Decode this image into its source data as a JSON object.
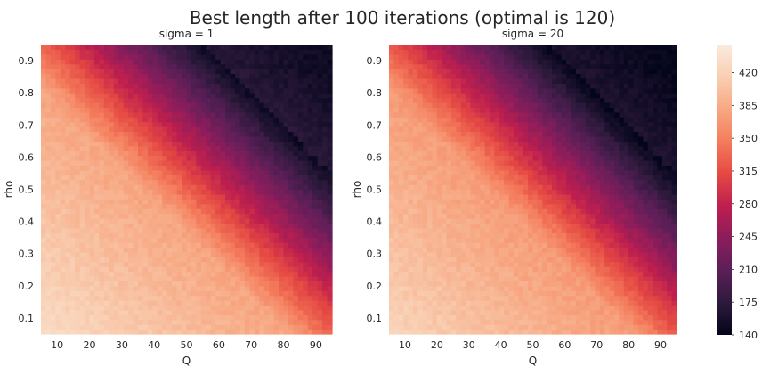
{
  "chart_data": {
    "suptitle": "Best length after 100 iterations (optimal is 120)",
    "colorbar": {
      "min": 140,
      "max": 450,
      "ticks": [
        140,
        175,
        210,
        245,
        280,
        315,
        350,
        385,
        420
      ],
      "colormap": "rocket",
      "colors": [
        "#03051a",
        "#2d1a3c",
        "#5b1f57",
        "#8b1d5c",
        "#be1f4e",
        "#e54943",
        "#f47c5c",
        "#f7a883",
        "#f9cfb3",
        "#faebdd"
      ]
    },
    "panels": [
      {
        "type": "heatmap",
        "title": "sigma = 1",
        "xlabel": "Q",
        "ylabel": "rho",
        "xticks": [
          10,
          20,
          30,
          40,
          50,
          60,
          70,
          80,
          90
        ],
        "yticks": [
          0.1,
          0.2,
          0.3,
          0.4,
          0.5,
          0.6,
          0.7,
          0.8,
          0.9
        ],
        "xlim": [
          5,
          95
        ],
        "ylim": [
          0.05,
          0.95
        ],
        "grid": false,
        "sigma": 1
      },
      {
        "type": "heatmap",
        "title": "sigma = 20",
        "xlabel": "Q",
        "ylabel": "rho",
        "xticks": [
          10,
          20,
          30,
          40,
          50,
          60,
          70,
          80,
          90
        ],
        "yticks": [
          0.1,
          0.2,
          0.3,
          0.4,
          0.5,
          0.6,
          0.7,
          0.8,
          0.9
        ],
        "xlim": [
          5,
          95
        ],
        "ylim": [
          0.05,
          0.95
        ],
        "grid": false,
        "sigma": 20
      }
    ]
  }
}
